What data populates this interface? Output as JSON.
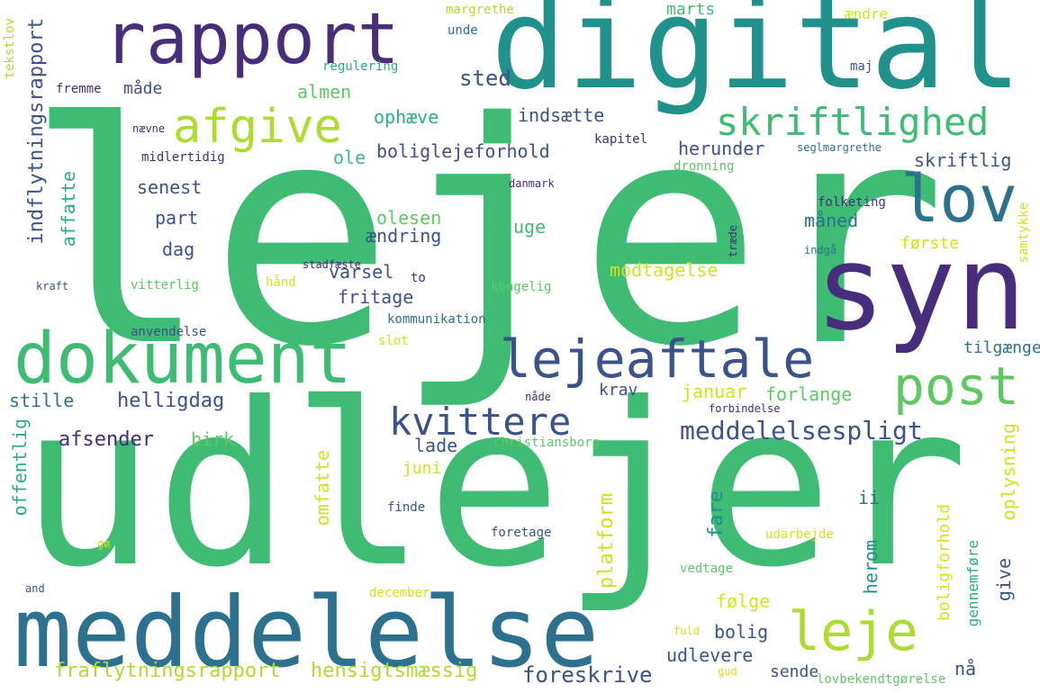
{
  "palette": {
    "background": "#ffffff",
    "colors": [
      "#472d7b",
      "#3b528b",
      "#2c728e",
      "#21918c",
      "#28ae80",
      "#3fbc73",
      "#5ec962",
      "#addc30",
      "#d2e21b",
      "#440154"
    ]
  },
  "words": [
    "lejer",
    "udlejer",
    "digital",
    "syn",
    "meddelelse",
    "dokument",
    "rapport",
    "lov",
    "lejeaftale",
    "skriftlighed",
    "afgive",
    "post",
    "leje",
    "kvittere",
    "meddelelsespligt",
    "fraflytningsrapport",
    "hensigtsmæssig",
    "indflytningsrapport",
    "sted",
    "måde",
    "almen",
    "ophæve",
    "indsætte",
    "boliglejeforhold",
    "herunder",
    "skriftlig",
    "senest",
    "part",
    "dag",
    "affatte",
    "olesen",
    "ændring",
    "uge",
    "måned",
    "første",
    "varsel",
    "fritage",
    "modtagelse",
    "helligdag",
    "afsender",
    "birk",
    "lade",
    "krav",
    "januar",
    "forlange",
    "stille",
    "offentlig",
    "juni",
    "omfatte",
    "platform",
    "fare",
    "ii",
    "herom",
    "oplysning",
    "boligforhold",
    "gennemføre",
    "give",
    "følge",
    "bolig",
    "udlevere",
    "sende",
    "foreskrive",
    "nå",
    "ændre",
    "marts",
    "tilgængelig",
    "margrethe",
    "unde",
    "regulering",
    "maj",
    "fremme",
    "nævne",
    "kapitel",
    "seglmargrethe",
    "midlertidig",
    "dronning",
    "danmark",
    "folketing",
    "indgå",
    "stadfæste",
    "to",
    "kraft",
    "træde",
    "vitterlig",
    "hånd",
    "kongelig",
    "anvendelse",
    "kommunikation",
    "slot",
    "samtykke",
    "nåde",
    "forbindelse",
    "christiansborg",
    "finde",
    "foretage",
    "udarbejde",
    "gø",
    "and",
    "vedtage",
    "december",
    "fuld",
    "gud",
    "tekstlov",
    "lovbekendtgørelse",
    "ole"
  ]
}
